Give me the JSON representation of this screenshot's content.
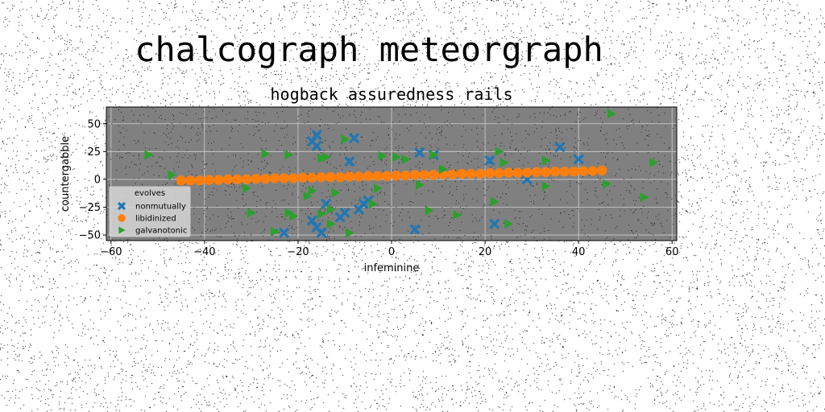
{
  "suptitle": "chalcograph meteorgraph",
  "chart_data": {
    "type": "scatter",
    "title": "hogback assuredness rails",
    "xlabel": "infeminine",
    "ylabel": "countergabble",
    "xlim": [
      -61,
      61
    ],
    "ylim": [
      -55,
      65
    ],
    "xticks": [
      -60,
      -40,
      -20,
      0,
      20,
      40,
      60
    ],
    "yticks": [
      -50,
      -25,
      0,
      25,
      50
    ],
    "grid": true,
    "background": "#808080",
    "legend": {
      "title": "evolves",
      "placement": "lower-left"
    },
    "series": [
      {
        "name": "nonmutually",
        "color": "#1f77b4",
        "marker": "x",
        "points": [
          [
            -17,
            34
          ],
          [
            -16,
            30
          ],
          [
            -16,
            40
          ],
          [
            -9,
            16
          ],
          [
            -8,
            37
          ],
          [
            -6,
            -22
          ],
          [
            -7,
            -27
          ],
          [
            -10,
            -30
          ],
          [
            -17,
            -37
          ],
          [
            -16,
            -43
          ],
          [
            -15,
            -48
          ],
          [
            -23,
            -48
          ],
          [
            5,
            -45
          ],
          [
            6,
            24
          ],
          [
            9,
            22
          ],
          [
            21,
            17
          ],
          [
            22,
            -40
          ],
          [
            29,
            0
          ],
          [
            36,
            29
          ],
          [
            40,
            18
          ],
          [
            -14,
            -22
          ],
          [
            -11,
            -34
          ],
          [
            -5,
            -19
          ]
        ]
      },
      {
        "name": "libidinized",
        "color": "#ff7f0e",
        "marker": "o",
        "points": [
          [
            -45,
            -1
          ],
          [
            -43,
            -1
          ],
          [
            -41,
            -1
          ],
          [
            -39,
            -0.5
          ],
          [
            -37,
            -0.5
          ],
          [
            -35,
            0
          ],
          [
            -33,
            0
          ],
          [
            -31,
            0
          ],
          [
            -29,
            0.5
          ],
          [
            -27,
            0.5
          ],
          [
            -25,
            1
          ],
          [
            -23,
            1
          ],
          [
            -21,
            1
          ],
          [
            -19,
            1.5
          ],
          [
            -17,
            1.5
          ],
          [
            -15,
            2
          ],
          [
            -13,
            2
          ],
          [
            -11,
            2
          ],
          [
            -9,
            2.5
          ],
          [
            -7,
            2.5
          ],
          [
            -5,
            3
          ],
          [
            -3,
            3
          ],
          [
            -1,
            3
          ],
          [
            1,
            3.5
          ],
          [
            3,
            3.5
          ],
          [
            5,
            4
          ],
          [
            7,
            4
          ],
          [
            9,
            4
          ],
          [
            11,
            4.5
          ],
          [
            13,
            4.5
          ],
          [
            15,
            5
          ],
          [
            17,
            5
          ],
          [
            19,
            5
          ],
          [
            21,
            5.5
          ],
          [
            23,
            5.5
          ],
          [
            25,
            6
          ],
          [
            27,
            6
          ],
          [
            29,
            6
          ],
          [
            31,
            6.5
          ],
          [
            33,
            6.5
          ],
          [
            35,
            7
          ],
          [
            37,
            7
          ],
          [
            39,
            7
          ],
          [
            41,
            7.5
          ],
          [
            43,
            7.5
          ],
          [
            45,
            8
          ]
        ]
      },
      {
        "name": "galvanotonic",
        "color": "#2ca02c",
        "marker": ">",
        "points": [
          [
            -52,
            22
          ],
          [
            -47,
            4
          ],
          [
            -31,
            -8
          ],
          [
            -27,
            23
          ],
          [
            -22,
            22
          ],
          [
            -18,
            -15
          ],
          [
            -17,
            -10
          ],
          [
            -15,
            19
          ],
          [
            -14,
            20
          ],
          [
            -13,
            -27
          ],
          [
            -12,
            -12
          ],
          [
            -10,
            36
          ],
          [
            -3,
            -8
          ],
          [
            -2,
            21
          ],
          [
            1,
            20
          ],
          [
            3,
            18
          ],
          [
            6,
            -5
          ],
          [
            8,
            -28
          ],
          [
            9,
            22
          ],
          [
            11,
            9
          ],
          [
            14,
            -32
          ],
          [
            22,
            -20
          ],
          [
            23,
            25
          ],
          [
            24,
            15
          ],
          [
            25,
            -40
          ],
          [
            33,
            -6
          ],
          [
            33,
            17
          ],
          [
            46,
            -4
          ],
          [
            47,
            59
          ],
          [
            54,
            -16
          ],
          [
            56,
            15
          ],
          [
            -30,
            -30
          ],
          [
            -22,
            -30
          ],
          [
            -21,
            -33
          ],
          [
            -15,
            -31
          ],
          [
            -9,
            -48
          ],
          [
            -4,
            -22
          ],
          [
            -25,
            -47
          ],
          [
            -13,
            -40
          ]
        ]
      }
    ]
  }
}
